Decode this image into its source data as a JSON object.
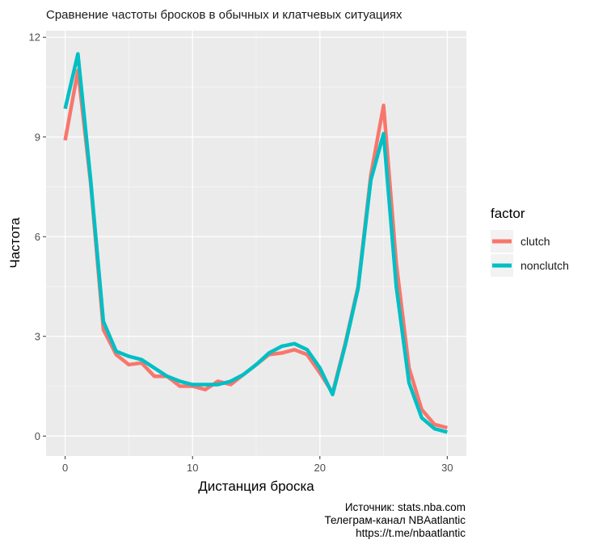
{
  "chart_data": {
    "type": "line",
    "title": "Сравнение частоты бросков в обычных и клатчевых ситуациях",
    "xlabel": "Дистанция броска",
    "ylabel": "Частота",
    "xlim": [
      -1.5,
      31.5
    ],
    "ylim": [
      -0.6,
      12.2
    ],
    "x_ticks": [
      0,
      10,
      20,
      30
    ],
    "y_ticks": [
      0,
      3,
      6,
      9,
      12
    ],
    "x_tick_labels": [
      "0",
      "10",
      "20",
      "30"
    ],
    "y_tick_labels": [
      "0",
      "3",
      "6",
      "9",
      "12"
    ],
    "grid": true,
    "legend": {
      "title": "factor",
      "position": "right"
    },
    "x": [
      0,
      1,
      2,
      3,
      4,
      5,
      6,
      7,
      8,
      9,
      10,
      11,
      12,
      13,
      14,
      15,
      16,
      17,
      18,
      19,
      20,
      21,
      22,
      23,
      24,
      25,
      26,
      27,
      28,
      29,
      30
    ],
    "series": [
      {
        "name": "clutch",
        "color": "#F8766D",
        "values": [
          8.9,
          11.0,
          7.6,
          3.2,
          2.45,
          2.15,
          2.2,
          1.8,
          1.8,
          1.5,
          1.5,
          1.4,
          1.65,
          1.55,
          1.85,
          2.15,
          2.45,
          2.5,
          2.6,
          2.45,
          1.9,
          1.3,
          2.8,
          4.5,
          7.85,
          9.95,
          5.2,
          2.05,
          0.8,
          0.35,
          0.25
        ]
      },
      {
        "name": "nonclutch",
        "color": "#00BFC4",
        "values": [
          9.85,
          11.5,
          7.7,
          3.45,
          2.55,
          2.4,
          2.3,
          2.05,
          1.8,
          1.65,
          1.55,
          1.55,
          1.55,
          1.65,
          1.85,
          2.15,
          2.5,
          2.7,
          2.78,
          2.6,
          2.05,
          1.25,
          2.75,
          4.45,
          7.7,
          9.1,
          4.5,
          1.6,
          0.55,
          0.22,
          0.12
        ]
      }
    ]
  },
  "caption": {
    "source": "Источник: stats.nba.com",
    "telegram": "Телеграм-канал NBAatlantic",
    "url": "https://t.me/nbaatlantic"
  }
}
